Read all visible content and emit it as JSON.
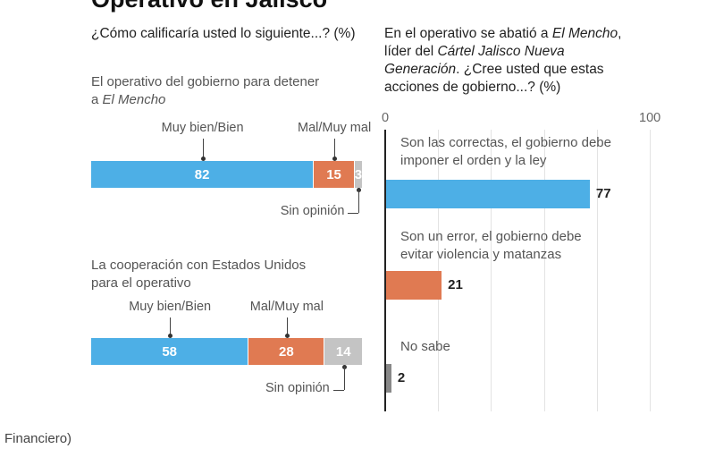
{
  "title": "Operativo en Jalisco",
  "footer": "Financiero)",
  "colors": {
    "positive": "#4dafe6",
    "negative": "#e07a52",
    "neutral": "#c4c4c4"
  },
  "chart_data": [
    {
      "type": "bar",
      "stacked": true,
      "orientation": "horizontal",
      "title": "¿Cómo calificaría usted lo siguiente...? (%)",
      "groups": [
        {
          "label_plain": "El operativo del gobierno para detener",
          "label_line2": "a ",
          "label_italic": "El Mencho",
          "segments": [
            {
              "name": "Muy bien/Bien",
              "value": 82
            },
            {
              "name": "Mal/Muy mal",
              "value": 15
            },
            {
              "name": "Sin opinión",
              "value": 3
            }
          ]
        },
        {
          "label_plain": "La cooperación con Estados Unidos",
          "label_line2": "para el operativo",
          "label_italic": "",
          "segments": [
            {
              "name": "Muy bien/Bien",
              "value": 58
            },
            {
              "name": "Mal/Muy mal",
              "value": 28
            },
            {
              "name": "Sin opinión",
              "value": 14
            }
          ]
        }
      ]
    },
    {
      "type": "bar",
      "orientation": "horizontal",
      "title_parts": [
        "En el operativo se abatió a ",
        "El Mencho",
        ",",
        "líder del ",
        "Cártel Jalisco Nueva",
        "Generación",
        ". ¿Cree usted que estas",
        "acciones de gobierno...? (%)"
      ],
      "xlim": [
        0,
        100
      ],
      "xticks": [
        "0",
        "100"
      ],
      "grid": true,
      "categories": [
        [
          "Son las correctas, el gobierno debe",
          "imponer el orden y la ley"
        ],
        [
          "Son un error, el gobierno debe",
          "evitar violencia y matanzas"
        ],
        [
          "No sabe",
          ""
        ]
      ],
      "values": [
        77,
        21,
        2
      ]
    }
  ]
}
